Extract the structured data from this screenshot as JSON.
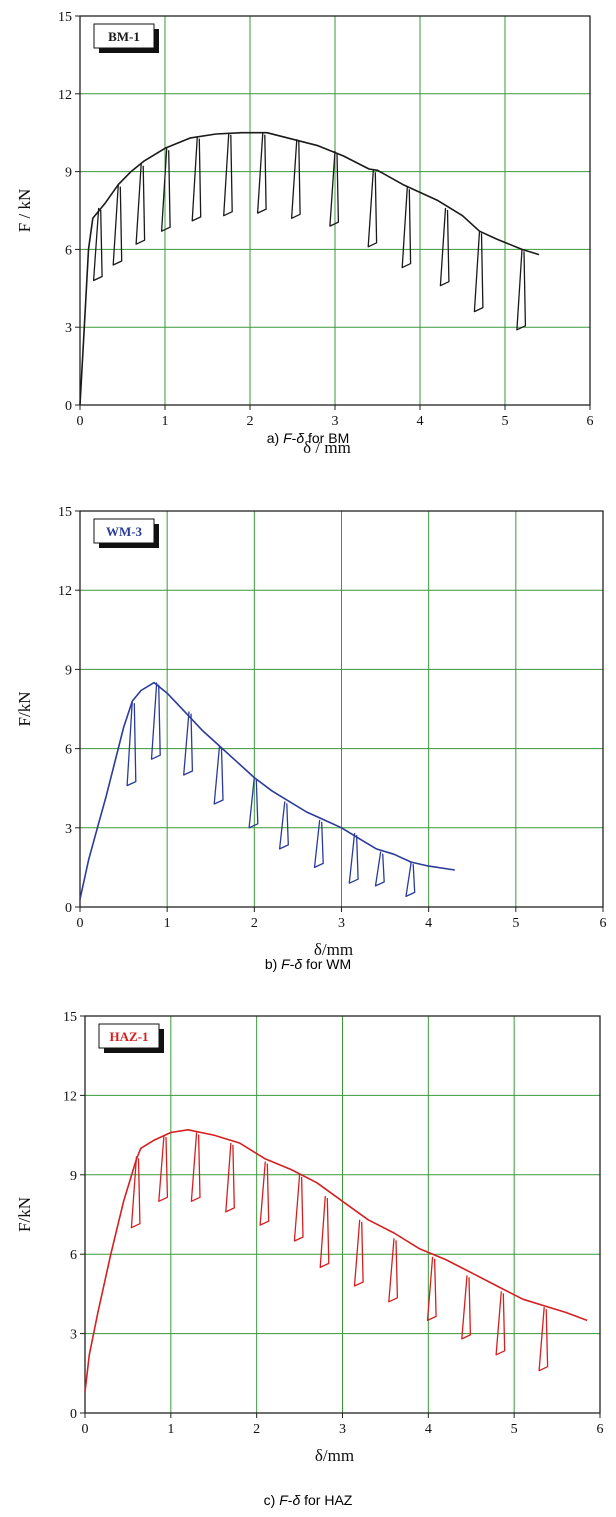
{
  "chart_data": [
    {
      "type": "line",
      "panel_caption_prefix": "a) ",
      "caption_f": "F",
      "caption_dash": "-",
      "caption_delta": "δ",
      "caption_suffix": " for BM",
      "legend": "BM-1",
      "xlabel": "δ / mm",
      "ylabel": "F / kN",
      "xlim": [
        0,
        6
      ],
      "ylim": [
        0,
        15
      ],
      "xticks": [
        "0",
        "1",
        "2",
        "3",
        "4",
        "5",
        "6"
      ],
      "yticks": [
        "0",
        "3",
        "6",
        "9",
        "12",
        "15"
      ],
      "grid": true,
      "color": "#1a1a1a",
      "envelope": [
        [
          0,
          0
        ],
        [
          0.05,
          3.0
        ],
        [
          0.1,
          6.0
        ],
        [
          0.15,
          7.2
        ],
        [
          0.3,
          7.8
        ],
        [
          0.45,
          8.5
        ],
        [
          0.6,
          9.0
        ],
        [
          0.75,
          9.4
        ],
        [
          1.0,
          9.9
        ],
        [
          1.3,
          10.3
        ],
        [
          1.6,
          10.45
        ],
        [
          1.9,
          10.5
        ],
        [
          2.2,
          10.5
        ],
        [
          2.5,
          10.25
        ],
        [
          2.8,
          10.0
        ],
        [
          3.1,
          9.6
        ],
        [
          3.4,
          9.1
        ],
        [
          3.5,
          9.05
        ],
        [
          3.8,
          8.5
        ],
        [
          4.2,
          7.9
        ],
        [
          4.5,
          7.3
        ],
        [
          4.7,
          6.7
        ],
        [
          4.9,
          6.4
        ],
        [
          5.2,
          6.0
        ],
        [
          5.4,
          5.8
        ]
      ],
      "unloads": [
        {
          "d": 0.22,
          "f": 7.6,
          "fmin": 4.8
        },
        {
          "d": 0.45,
          "f": 8.5,
          "fmin": 5.4
        },
        {
          "d": 0.72,
          "f": 9.3,
          "fmin": 6.2
        },
        {
          "d": 1.02,
          "f": 9.9,
          "fmin": 6.7
        },
        {
          "d": 1.38,
          "f": 10.35,
          "fmin": 7.1
        },
        {
          "d": 1.75,
          "f": 10.5,
          "fmin": 7.3
        },
        {
          "d": 2.15,
          "f": 10.5,
          "fmin": 7.4
        },
        {
          "d": 2.55,
          "f": 10.25,
          "fmin": 7.2
        },
        {
          "d": 3.0,
          "f": 9.8,
          "fmin": 6.9
        },
        {
          "d": 3.45,
          "f": 9.05,
          "fmin": 6.1
        },
        {
          "d": 3.85,
          "f": 8.4,
          "fmin": 5.3
        },
        {
          "d": 4.3,
          "f": 7.6,
          "fmin": 4.6
        },
        {
          "d": 4.7,
          "f": 6.7,
          "fmin": 3.6
        },
        {
          "d": 5.2,
          "f": 6.0,
          "fmin": 2.9
        }
      ]
    },
    {
      "type": "line",
      "panel_caption_prefix": "b) ",
      "caption_f": "F",
      "caption_dash": "-",
      "caption_delta": "δ",
      "caption_suffix": " for WM",
      "legend": "WM-3",
      "xlabel": "δ/mm",
      "ylabel": "F/kN",
      "xlim": [
        0,
        6
      ],
      "ylim": [
        0,
        15
      ],
      "xticks": [
        "0",
        "1",
        "2",
        "3",
        "4",
        "5",
        "6"
      ],
      "yticks": [
        "0",
        "3",
        "6",
        "9",
        "12",
        "15"
      ],
      "grid": true,
      "color": "#2b3b9a",
      "envelope": [
        [
          0,
          0.3
        ],
        [
          0.1,
          1.8
        ],
        [
          0.2,
          3.0
        ],
        [
          0.3,
          4.2
        ],
        [
          0.4,
          5.5
        ],
        [
          0.5,
          6.8
        ],
        [
          0.6,
          7.8
        ],
        [
          0.7,
          8.2
        ],
        [
          0.85,
          8.5
        ],
        [
          1.0,
          8.1
        ],
        [
          1.2,
          7.4
        ],
        [
          1.4,
          6.7
        ],
        [
          1.6,
          6.1
        ],
        [
          1.8,
          5.5
        ],
        [
          2.0,
          4.9
        ],
        [
          2.2,
          4.4
        ],
        [
          2.4,
          4.0
        ],
        [
          2.6,
          3.6
        ],
        [
          2.8,
          3.3
        ],
        [
          3.0,
          3.0
        ],
        [
          3.2,
          2.6
        ],
        [
          3.4,
          2.2
        ],
        [
          3.6,
          2.0
        ],
        [
          3.8,
          1.7
        ],
        [
          4.0,
          1.55
        ],
        [
          4.3,
          1.4
        ]
      ],
      "unloads": [
        {
          "d": 0.6,
          "f": 7.8,
          "fmin": 4.6
        },
        {
          "d": 0.88,
          "f": 8.5,
          "fmin": 5.6
        },
        {
          "d": 1.25,
          "f": 7.4,
          "fmin": 5.0
        },
        {
          "d": 1.6,
          "f": 6.1,
          "fmin": 3.9
        },
        {
          "d": 2.0,
          "f": 4.9,
          "fmin": 3.0
        },
        {
          "d": 2.35,
          "f": 4.0,
          "fmin": 2.2
        },
        {
          "d": 2.75,
          "f": 3.3,
          "fmin": 1.5
        },
        {
          "d": 3.15,
          "f": 2.8,
          "fmin": 0.9
        },
        {
          "d": 3.45,
          "f": 2.1,
          "fmin": 0.8
        },
        {
          "d": 3.8,
          "f": 1.7,
          "fmin": 0.4
        }
      ]
    },
    {
      "type": "line",
      "panel_caption_prefix": "c) ",
      "caption_f": "F",
      "caption_dash": "-",
      "caption_delta": "δ",
      "caption_suffix": " for HAZ",
      "legend": "HAZ-1",
      "xlabel": "δ/mm",
      "ylabel": "F/kN",
      "xlim": [
        0,
        6
      ],
      "ylim": [
        0,
        15
      ],
      "xticks": [
        "0",
        "1",
        "2",
        "3",
        "4",
        "5",
        "6"
      ],
      "yticks": [
        "0",
        "3",
        "6",
        "9",
        "12",
        "15"
      ],
      "grid": true,
      "color": "#d42020",
      "envelope": [
        [
          0,
          0.8
        ],
        [
          0.05,
          2.2
        ],
        [
          0.15,
          3.8
        ],
        [
          0.3,
          6.0
        ],
        [
          0.45,
          8.0
        ],
        [
          0.6,
          9.6
        ],
        [
          0.65,
          10.0
        ],
        [
          0.8,
          10.3
        ],
        [
          1.0,
          10.6
        ],
        [
          1.2,
          10.7
        ],
        [
          1.5,
          10.5
        ],
        [
          1.8,
          10.2
        ],
        [
          2.1,
          9.6
        ],
        [
          2.4,
          9.2
        ],
        [
          2.7,
          8.7
        ],
        [
          3.0,
          8.0
        ],
        [
          3.3,
          7.3
        ],
        [
          3.6,
          6.8
        ],
        [
          3.9,
          6.2
        ],
        [
          4.2,
          5.8
        ],
        [
          4.5,
          5.3
        ],
        [
          4.8,
          4.8
        ],
        [
          5.1,
          4.3
        ],
        [
          5.4,
          4.0
        ],
        [
          5.6,
          3.8
        ],
        [
          5.85,
          3.5
        ]
      ],
      "unloads": [
        {
          "d": 0.6,
          "f": 9.7,
          "fmin": 7.0
        },
        {
          "d": 0.92,
          "f": 10.5,
          "fmin": 8.0
        },
        {
          "d": 1.3,
          "f": 10.6,
          "fmin": 8.0
        },
        {
          "d": 1.7,
          "f": 10.2,
          "fmin": 7.6
        },
        {
          "d": 2.1,
          "f": 9.5,
          "fmin": 7.1
        },
        {
          "d": 2.5,
          "f": 9.0,
          "fmin": 6.5
        },
        {
          "d": 2.8,
          "f": 8.2,
          "fmin": 5.5
        },
        {
          "d": 3.2,
          "f": 7.3,
          "fmin": 4.8
        },
        {
          "d": 3.6,
          "f": 6.6,
          "fmin": 4.2
        },
        {
          "d": 4.05,
          "f": 5.9,
          "fmin": 3.5
        },
        {
          "d": 4.45,
          "f": 5.2,
          "fmin": 2.8
        },
        {
          "d": 4.85,
          "f": 4.6,
          "fmin": 2.2
        },
        {
          "d": 5.35,
          "f": 4.0,
          "fmin": 1.6
        }
      ]
    }
  ]
}
